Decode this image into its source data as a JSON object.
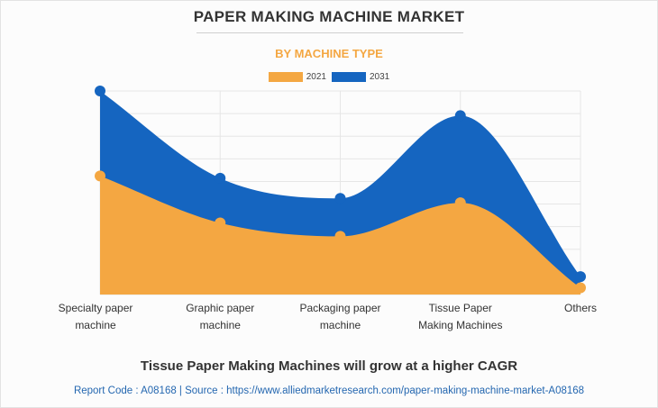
{
  "chart_data": {
    "type": "area",
    "title": "PAPER MAKING MACHINE MARKET",
    "subtitle": "BY MACHINE TYPE",
    "categories": [
      "Specialty paper machine",
      "Graphic paper machine",
      "Packaging paper machine",
      "Tissue Paper Making Machines",
      "Others"
    ],
    "category_lines": [
      [
        "Specialty paper",
        "machine"
      ],
      [
        "Graphic paper",
        "machine"
      ],
      [
        "Packaging paper",
        "machine"
      ],
      [
        "Tissue Paper",
        "Making Machines"
      ],
      [
        "Others",
        ""
      ]
    ],
    "series": [
      {
        "name": "2021",
        "color": "#f4a742",
        "values": [
          5.3,
          3.2,
          2.6,
          4.1,
          0.3
        ]
      },
      {
        "name": "2031",
        "color": "#1565c0",
        "values": [
          9.1,
          5.2,
          4.3,
          8.0,
          0.8
        ]
      }
    ],
    "ylim": [
      0,
      9.1
    ],
    "grid": true,
    "legend": "top-center",
    "xlabel": "",
    "ylabel": ""
  },
  "footer": {
    "headline": "Tissue Paper Making Machines will grow at a higher CAGR",
    "source": "Report Code : A08168  |  Source : https://www.alliedmarketresearch.com/paper-making-machine-market-A08168"
  }
}
